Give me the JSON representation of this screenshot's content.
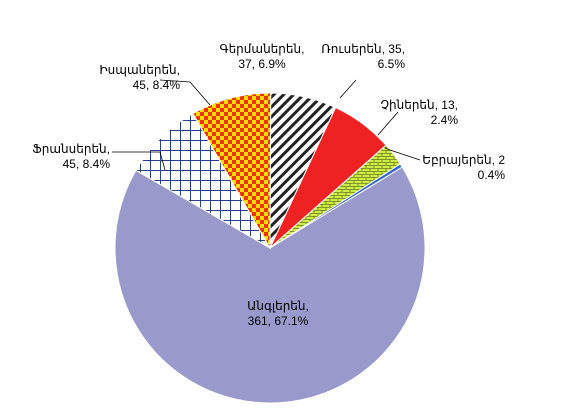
{
  "chart_data": {
    "type": "pie",
    "title": "",
    "slices": [
      {
        "name": "Անգլերեն",
        "value": 361,
        "percent": "67.1%",
        "color": "#9999cc",
        "fill": "solid",
        "label_line1": "Անգլերեն,",
        "label_line2": "361, 67.1%"
      },
      {
        "name": "Ֆրանսերեն",
        "value": 45,
        "percent": "8.4%",
        "color": "#2b3f8f",
        "fill": "grid",
        "label_line1": "Ֆրանսերեն,",
        "label_line2": "45, 8.4%"
      },
      {
        "name": "Իսպաներեն",
        "value": 45,
        "percent": "8.4%",
        "color": "#ff6600",
        "fill": "checker",
        "label_line1": "Իսպաներեն,",
        "label_line2": "45, 8.4%"
      },
      {
        "name": "Գերմաներեն",
        "value": 37,
        "percent": "6.9%",
        "color": "#222222",
        "fill": "diagonal",
        "label_line1": "Գերմաներեն,",
        "label_line2": "37, 6.9%"
      },
      {
        "name": "Ռուսերեն",
        "value": 35,
        "percent": "6.5%",
        "color": "#ee2222",
        "fill": "solid",
        "label_line1": "Ռուսերեն, 35,",
        "label_line2": "6.5%"
      },
      {
        "name": "Չիներեն",
        "value": 13,
        "percent": "2.4%",
        "color": "#ccee44",
        "fill": "brick",
        "label_line1": "Չիներեն, 13,",
        "label_line2": "2.4%"
      },
      {
        "name": "Եբրայերեն",
        "value": 2,
        "percent": "0.4%",
        "color": "#3366cc",
        "fill": "solid",
        "label_line1": "Եբրայերեն, 2",
        "label_line2": "0.4%"
      }
    ]
  }
}
